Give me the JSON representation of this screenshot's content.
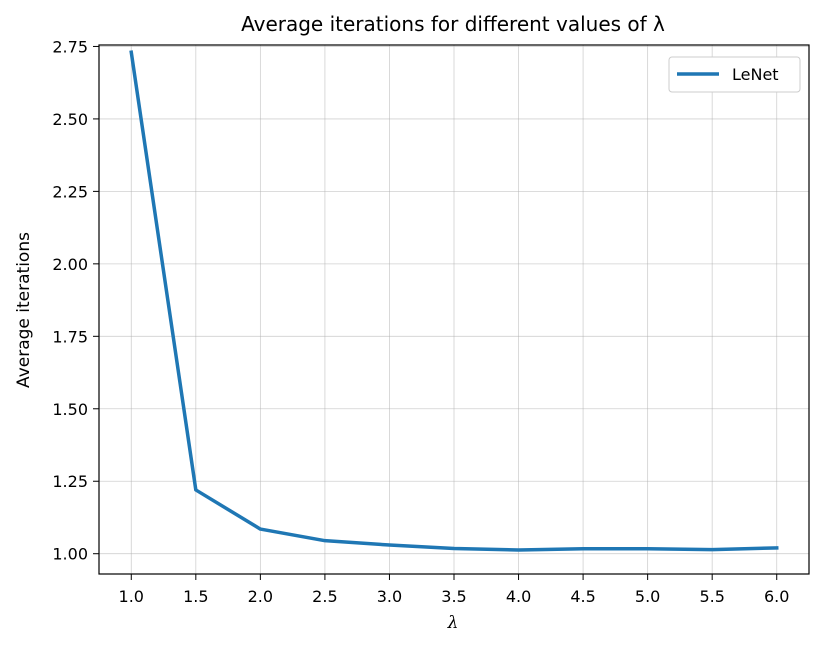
{
  "chart_data": {
    "type": "line",
    "title": "Average iterations for different values of λ",
    "xlabel": "λ",
    "ylabel": "Average iterations",
    "xlim": [
      0.75,
      6.25
    ],
    "ylim": [
      0.93,
      2.755
    ],
    "x_ticks": [
      "1.0",
      "1.5",
      "2.0",
      "2.5",
      "3.0",
      "3.5",
      "4.0",
      "4.5",
      "5.0",
      "5.5",
      "6.0"
    ],
    "y_ticks": [
      "1.00",
      "1.25",
      "1.50",
      "1.75",
      "2.00",
      "2.25",
      "2.50",
      "2.75"
    ],
    "grid": true,
    "legend_position": "top-right",
    "series": [
      {
        "name": "LeNet",
        "color": "#1f77b4",
        "x": [
          1.0,
          1.5,
          2.0,
          2.5,
          3.0,
          3.5,
          4.0,
          4.5,
          5.0,
          5.5,
          6.0
        ],
        "y": [
          2.73,
          1.22,
          1.085,
          1.045,
          1.03,
          1.018,
          1.013,
          1.017,
          1.017,
          1.014,
          1.02
        ]
      }
    ]
  }
}
